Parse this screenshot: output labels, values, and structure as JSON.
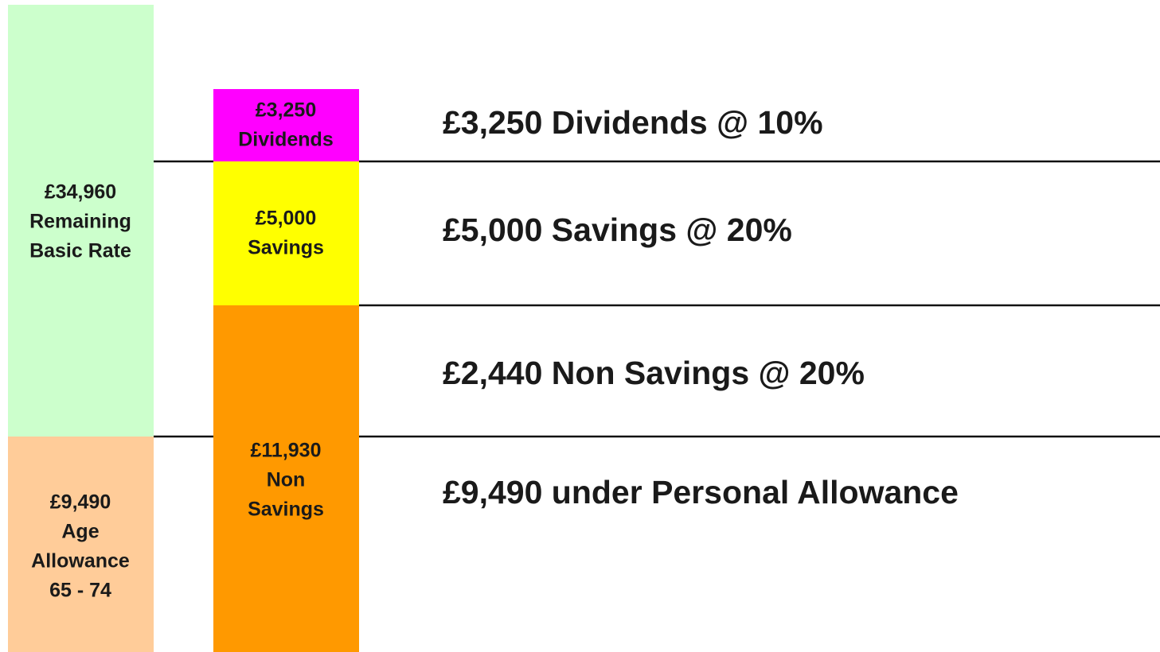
{
  "columns": [
    {
      "lines": [
        "£34,960",
        "Remaining",
        "Basic Rate"
      ]
    },
    {
      "lines": [
        "£9,490",
        "Age",
        "Allowance",
        "65 - 74"
      ]
    },
    {
      "lines": [
        "£3,250",
        "Dividends"
      ]
    },
    {
      "lines": [
        "£5,000",
        "Savings"
      ]
    },
    {
      "lines": [
        "£11,930",
        "Non",
        "Savings"
      ]
    }
  ],
  "bands": [
    {
      "label": "£3,250 Dividends @ 10%"
    },
    {
      "label": "£5,000 Savings @ 20%"
    },
    {
      "label": "£2,440 Non Savings @ 20%"
    },
    {
      "label": "£9,490 under Personal Allowance"
    }
  ]
}
